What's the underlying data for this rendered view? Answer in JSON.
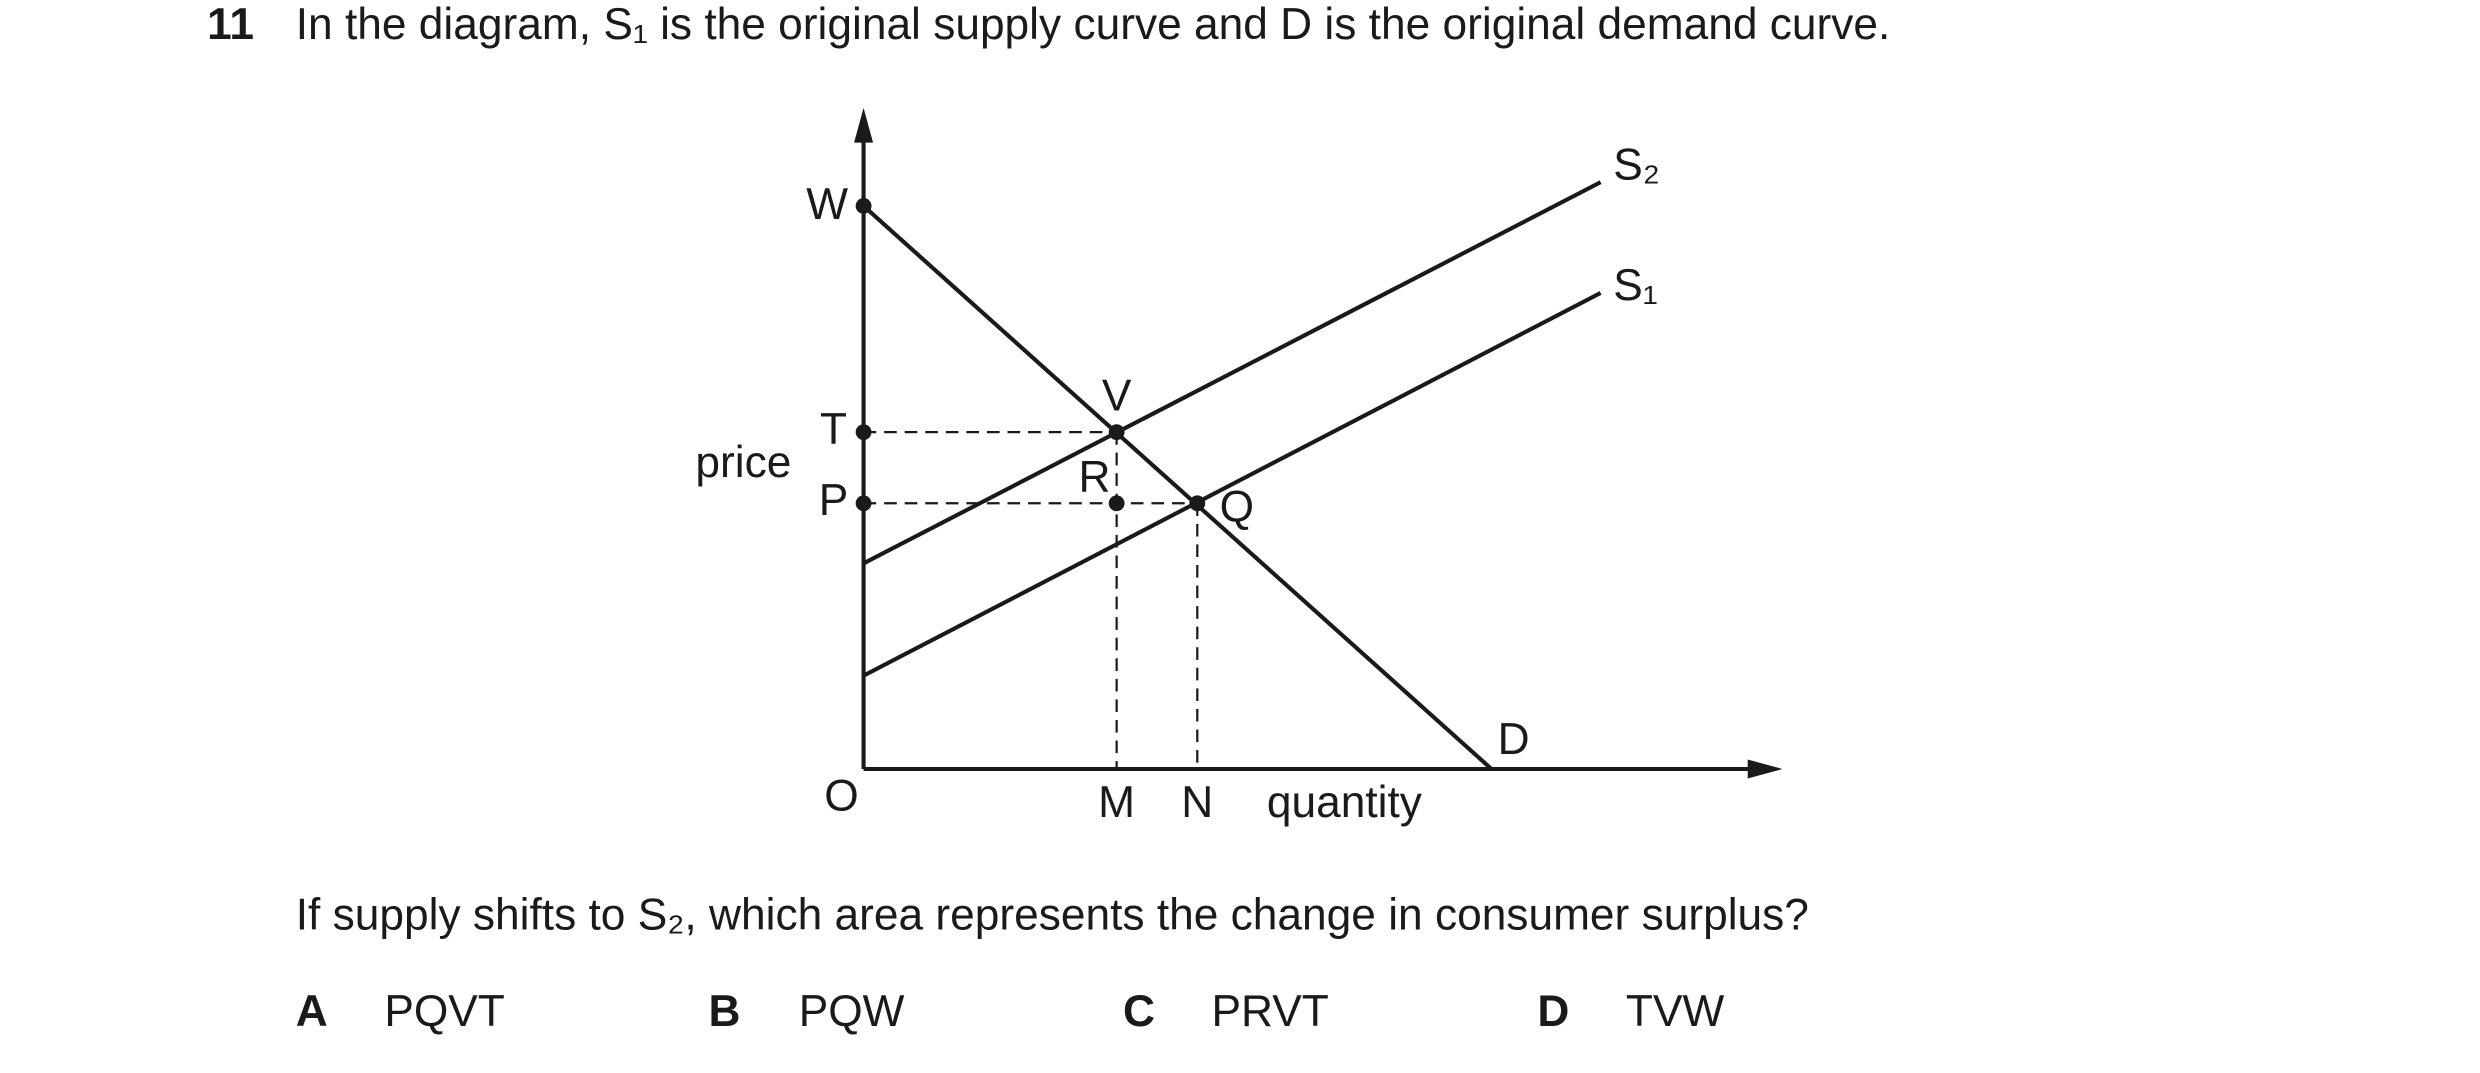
{
  "question": {
    "number": "11",
    "stem": "In the diagram, S₁ is the original supply curve and D is the original demand curve.",
    "prompt": "If supply shifts to S₂, which area represents the change in consumer surplus?"
  },
  "diagram": {
    "y_axis_label": "price",
    "x_axis_label": "quantity",
    "labels": [
      "W",
      "T",
      "P",
      "V",
      "R",
      "Q",
      "O",
      "M",
      "N",
      "D",
      "S₂",
      "S₁"
    ]
  },
  "options": [
    {
      "letter": "A",
      "text": "PQVT"
    },
    {
      "letter": "B",
      "text": "PQW"
    },
    {
      "letter": "C",
      "text": "PRVT"
    },
    {
      "letter": "D",
      "text": "TVW"
    }
  ]
}
